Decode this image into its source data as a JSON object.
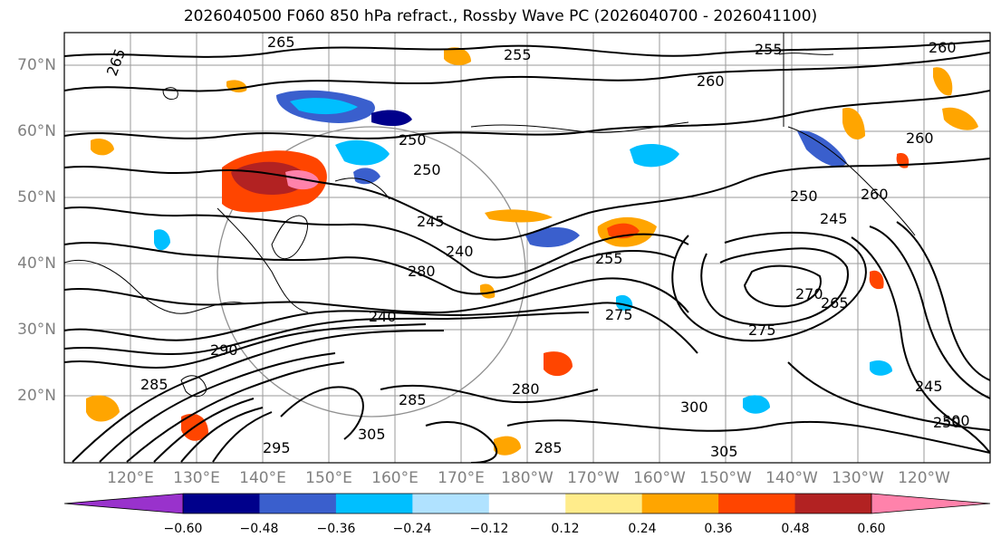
{
  "title": "2026040500 F060 850 hPa refract., Rossby Wave PC (2026040700 - 2026041100)",
  "lat_ticks": [
    "70°N",
    "60°N",
    "50°N",
    "40°N",
    "30°N",
    "20°N"
  ],
  "lon_ticks": [
    "120°E",
    "130°E",
    "140°E",
    "150°E",
    "160°E",
    "170°E",
    "180°W",
    "170°W",
    "160°W",
    "150°W",
    "140°W",
    "130°W",
    "120°W"
  ],
  "colorbar": {
    "ticks": [
      "−0.60",
      "−0.48",
      "−0.36",
      "−0.24",
      "−0.12",
      "0.12",
      "0.24",
      "0.36",
      "0.48",
      "0.60"
    ],
    "colors": [
      "#9932cc",
      "#00008b",
      "#3a5fcd",
      "#00bfff",
      "#b0e2ff",
      "#ffffff",
      "#ffec8b",
      "#ffa500",
      "#ff4500",
      "#b22222",
      "#ff82ab"
    ]
  },
  "contour_labels": [
    "265",
    "265",
    "255",
    "255",
    "260",
    "260",
    "250",
    "250",
    "250",
    "245",
    "240",
    "245",
    "255",
    "260",
    "260",
    "240",
    "280",
    "275",
    "275",
    "270",
    "265",
    "285",
    "290",
    "305",
    "300",
    "305",
    "280",
    "285",
    "295",
    "300",
    "245",
    "250",
    "285"
  ],
  "colors": {
    "contour": "#000000",
    "grid": "#808080",
    "axis_text": "#808080"
  }
}
